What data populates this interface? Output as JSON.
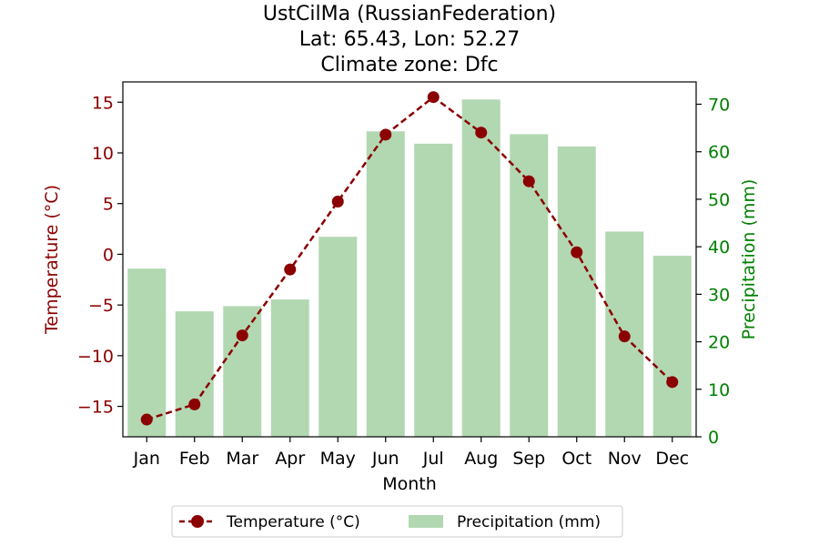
{
  "chart_data": {
    "type": "bar+line",
    "title_lines": [
      "UstCilMa (RussianFederation)",
      "Lat: 65.43, Lon: 52.27",
      "Climate zone: Dfc"
    ],
    "categories": [
      "Jan",
      "Feb",
      "Mar",
      "Apr",
      "May",
      "Jun",
      "Jul",
      "Aug",
      "Sep",
      "Oct",
      "Nov",
      "Dec"
    ],
    "xlabel": "Month",
    "y_left": {
      "label": "Temperature (°C)",
      "lim": [
        -18,
        17
      ],
      "ticks": [
        -15,
        -10,
        -5,
        0,
        5,
        10,
        15
      ],
      "tick_labels": [
        "−15",
        "−10",
        "−5",
        "0",
        "5",
        "10",
        "15"
      ],
      "color": "#8b0000"
    },
    "y_right": {
      "label": "Precipitation (mm)",
      "lim": [
        0,
        74.7
      ],
      "ticks": [
        0,
        10,
        20,
        30,
        40,
        50,
        60,
        70
      ],
      "tick_labels": [
        "0",
        "10",
        "20",
        "30",
        "40",
        "50",
        "60",
        "70"
      ],
      "color": "#008000"
    },
    "series": [
      {
        "name": "Temperature (°C)",
        "type": "line",
        "axis": "left",
        "color": "#8b0000",
        "values": [
          -16.3,
          -14.8,
          -8.0,
          -1.5,
          5.2,
          11.8,
          15.5,
          12.0,
          7.2,
          0.2,
          -8.1,
          -12.6
        ]
      },
      {
        "name": "Precipitation (mm)",
        "type": "bar",
        "axis": "right",
        "color": "#b2d8b2",
        "values": [
          35.4,
          26.4,
          27.5,
          28.9,
          42.1,
          64.3,
          61.7,
          71.0,
          63.7,
          61.1,
          43.2,
          38.1
        ]
      }
    ],
    "legend": {
      "placement": "bottom-center",
      "entries": [
        "Temperature (°C)",
        "Precipitation (mm)"
      ]
    },
    "grid": false
  }
}
